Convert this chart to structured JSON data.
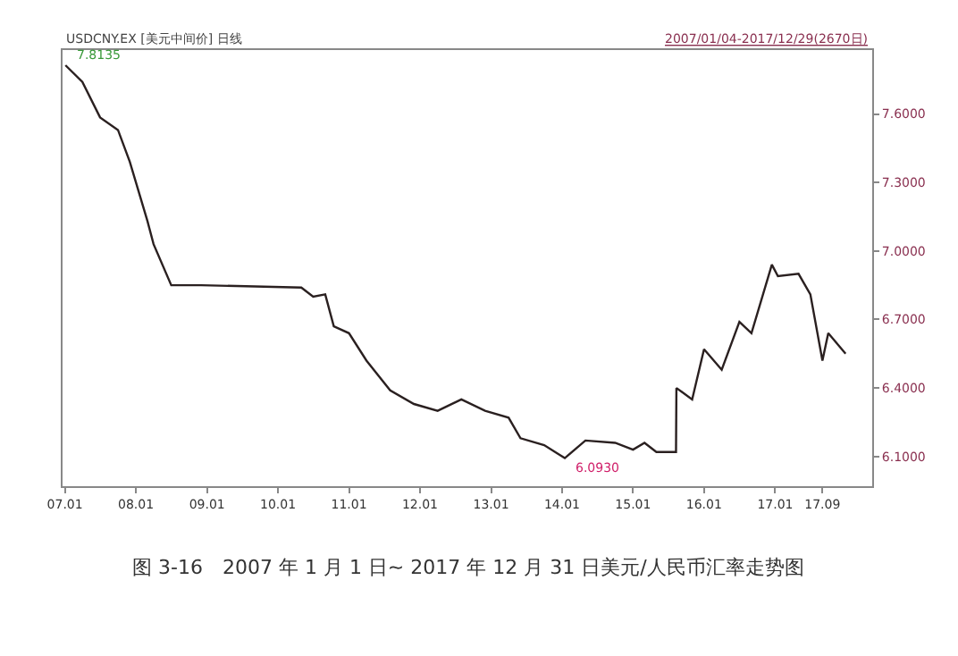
{
  "chart_data": {
    "type": "line",
    "title": "USDCNY.EX [美元中间价] 日线",
    "subtitle": "2007/01/04-2017/12/29(2670日)",
    "x": [
      "2007-01-04",
      "2007-04-01",
      "2007-07-01",
      "2007-10-01",
      "2007-12-01",
      "2008-03-01",
      "2008-04-01",
      "2008-07-01",
      "2008-12-01",
      "2010-05-01",
      "2010-07-01",
      "2010-09-01",
      "2010-10-15",
      "2011-01-01",
      "2011-04-01",
      "2011-08-01",
      "2011-12-01",
      "2012-04-01",
      "2012-08-01",
      "2012-12-01",
      "2013-04-01",
      "2013-06-01",
      "2013-10-01",
      "2014-01-15",
      "2014-05-01",
      "2014-10-01",
      "2015-01-01",
      "2015-03-01",
      "2015-05-01",
      "2015-08-10",
      "2015-08-12",
      "2015-11-01",
      "2016-01-01",
      "2016-04-01",
      "2016-07-01",
      "2016-09-01",
      "2016-12-15",
      "2017-01-15",
      "2017-05-01",
      "2017-07-01",
      "2017-09-01",
      "2017-10-01",
      "2017-12-29"
    ],
    "series": [
      {
        "color": "#2a2020",
        "values": [
          7.8135,
          7.74,
          7.585,
          7.53,
          7.39,
          7.13,
          7.03,
          6.85,
          6.85,
          6.84,
          6.8,
          6.81,
          6.67,
          6.64,
          6.52,
          6.39,
          6.33,
          6.3,
          6.35,
          6.3,
          6.27,
          6.18,
          6.15,
          6.093,
          6.17,
          6.16,
          6.13,
          6.16,
          6.12,
          6.12,
          6.4,
          6.35,
          6.57,
          6.48,
          6.69,
          6.64,
          6.94,
          6.89,
          6.9,
          6.81,
          6.52,
          6.64,
          6.55
        ]
      }
    ],
    "xlim": [
      "2006-12-20",
      "2018-05-15"
    ],
    "xticks": [
      {
        "value": "2007-01-01",
        "label": "07.01"
      },
      {
        "value": "2008-01-01",
        "label": "08.01"
      },
      {
        "value": "2009-01-01",
        "label": "09.01"
      },
      {
        "value": "2010-01-01",
        "label": "10.01"
      },
      {
        "value": "2011-01-01",
        "label": "11.01"
      },
      {
        "value": "2012-01-01",
        "label": "12.01"
      },
      {
        "value": "2013-01-01",
        "label": "13.01"
      },
      {
        "value": "2014-01-01",
        "label": "14.01"
      },
      {
        "value": "2015-01-01",
        "label": "15.01"
      },
      {
        "value": "2016-01-01",
        "label": "16.01"
      },
      {
        "value": "2017-01-01",
        "label": "17.01"
      },
      {
        "value": "2017-09-01",
        "label": "17.09"
      }
    ],
    "ylim": [
      5.97,
      7.88
    ],
    "yticks": [
      {
        "value": 6.1,
        "label": "6.1000"
      },
      {
        "value": 6.4,
        "label": "6.4000"
      },
      {
        "value": 6.7,
        "label": "6.7000"
      },
      {
        "value": 7.0,
        "label": "7.0000"
      },
      {
        "value": 7.3,
        "label": "7.3000"
      },
      {
        "value": 7.6,
        "label": "7.6000"
      }
    ],
    "annotations": [
      {
        "text": "7.8135",
        "x": "2007-01-04",
        "y": 7.8135
      },
      {
        "text": "6.0930",
        "x": "2014-01-15",
        "y": 6.093
      },
      "图 3-16　2007 年 1 月 1 日~ 2017 年 12 月 31 日美元/人民币汇率走势图"
    ]
  }
}
